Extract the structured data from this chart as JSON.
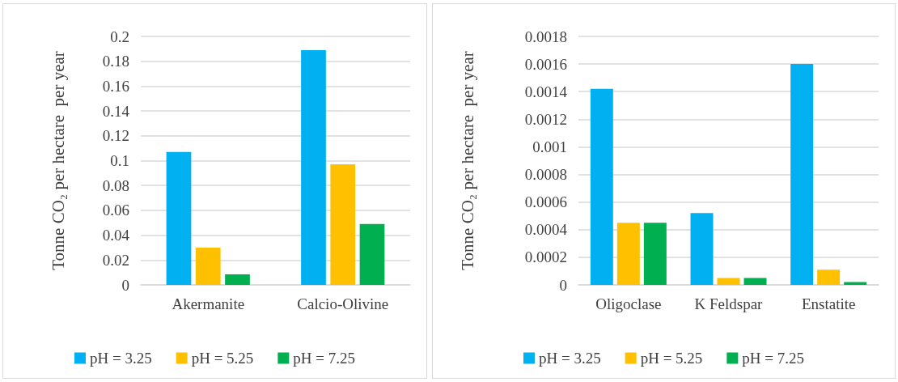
{
  "chart_data": [
    {
      "type": "bar",
      "ylabel": "Tonne CO₂ per hectare  per year",
      "categories": [
        "Akermanite",
        "Calcio-Olivine"
      ],
      "series": [
        {
          "name": "pH = 3.25",
          "color": "#00b0f0",
          "values": [
            0.107,
            0.189
          ]
        },
        {
          "name": "pH = 5.25",
          "color": "#ffc000",
          "values": [
            0.03,
            0.097
          ]
        },
        {
          "name": "pH = 7.25",
          "color": "#00b050",
          "values": [
            0.0085,
            0.049
          ]
        }
      ],
      "ylim": [
        0,
        0.2
      ],
      "yticks": [
        0,
        0.02,
        0.04,
        0.06,
        0.08,
        0.1,
        0.12,
        0.14,
        0.16,
        0.18,
        0.2
      ],
      "grid": "y",
      "legend": "bottom"
    },
    {
      "type": "bar",
      "ylabel": "Tonne CO₂ per hectare  per year",
      "categories": [
        "Oligoclase",
        "K Feldspar",
        "Enstatite"
      ],
      "series": [
        {
          "name": "pH = 3.25",
          "color": "#00b0f0",
          "values": [
            0.00142,
            0.00052,
            0.0016
          ]
        },
        {
          "name": "pH = 5.25",
          "color": "#ffc000",
          "values": [
            0.00045,
            5e-05,
            0.00011
          ]
        },
        {
          "name": "pH = 7.25",
          "color": "#00b050",
          "values": [
            0.00045,
            5e-05,
            2e-05
          ]
        }
      ],
      "ylim": [
        0,
        0.0018
      ],
      "yticks": [
        0,
        0.0002,
        0.0004,
        0.0006,
        0.0008,
        0.001,
        0.0012,
        0.0014,
        0.0016,
        0.0018
      ],
      "grid": "y",
      "legend": "bottom"
    }
  ]
}
